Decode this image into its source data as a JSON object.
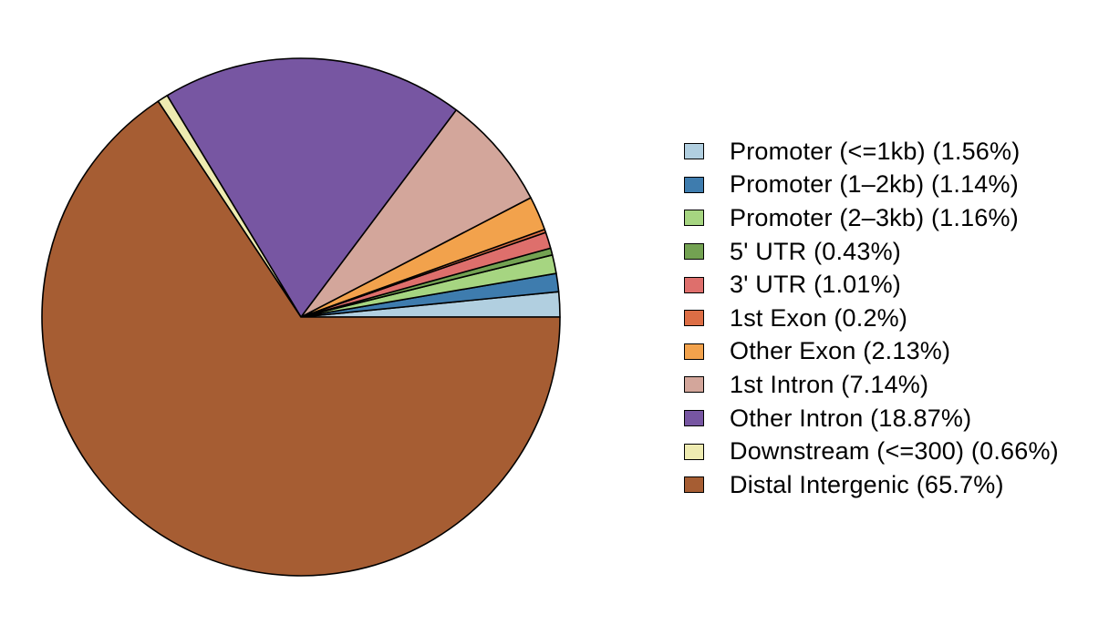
{
  "chart_data": {
    "type": "pie",
    "title": "",
    "legend_position": "right",
    "start_angle_deg": 0,
    "direction": "counterclockwise",
    "slices": [
      {
        "label": "Promoter (<=1kb) (1.56%)",
        "category": "Promoter (<=1kb)",
        "value": 1.56,
        "color": "#A6CEE3"
      },
      {
        "label": "Promoter (1–2kb) (1.14%)",
        "category": "Promoter (1–2kb)",
        "value": 1.14,
        "color": "#1F78B4"
      },
      {
        "label": "Promoter (2–3kb) (1.16%)",
        "category": "Promoter (2–3kb)",
        "value": 1.16,
        "color": "#B2DF8A"
      },
      {
        "label": "5' UTR (0.43%)",
        "category": "5' UTR",
        "value": 0.43,
        "color": "#33A02C"
      },
      {
        "label": "3' UTR (1.01%)",
        "category": "3' UTR",
        "value": 1.01,
        "color": "#FB9A99"
      },
      {
        "label": "1st Exon (0.2%)",
        "category": "1st Exon",
        "value": 0.2,
        "color": "#E31A1C"
      },
      {
        "label": "Other Exon (2.13%)",
        "category": "Other Exon",
        "value": 2.13,
        "color": "#FDBF6F"
      },
      {
        "label": "1st Intron (7.14%)",
        "category": "1st Intron",
        "value": 7.14,
        "color": "#FF7F00"
      },
      {
        "label": "Other Intron (18.87%)",
        "category": "Other Intron",
        "value": 18.87,
        "color": "#CAB2D6"
      },
      {
        "label": "Downstream (<=300) (0.66%)",
        "category": "Downstream (<=300)",
        "value": 0.66,
        "color": "#6A3D9A"
      },
      {
        "label": "Distal Intergenic (65.7%)",
        "category": "Distal Intergenic",
        "value": 65.7,
        "color": "#B15928"
      }
    ]
  }
}
